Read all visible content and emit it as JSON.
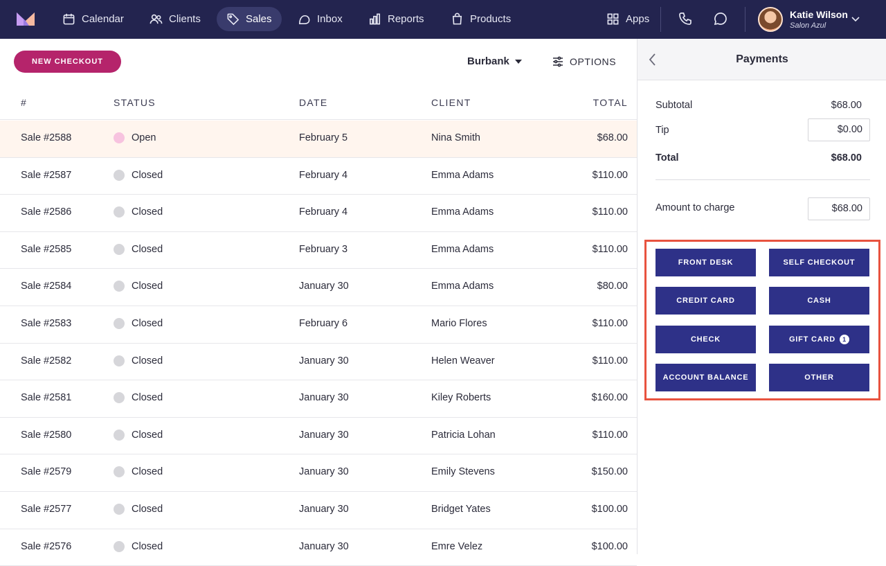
{
  "nav": {
    "items": [
      {
        "label": "Calendar",
        "icon": "calendar-icon"
      },
      {
        "label": "Clients",
        "icon": "users-icon"
      },
      {
        "label": "Sales",
        "icon": "tag-icon",
        "active": true
      },
      {
        "label": "Inbox",
        "icon": "inbox-icon"
      },
      {
        "label": "Reports",
        "icon": "bar-chart-icon"
      },
      {
        "label": "Products",
        "icon": "shopping-bag-icon"
      }
    ],
    "apps_label": "Apps",
    "user": {
      "name": "Katie Wilson",
      "salon": "Salon Azul"
    }
  },
  "toolbar": {
    "new_checkout": "NEW CHECKOUT",
    "location": "Burbank",
    "options": "OPTIONS"
  },
  "table": {
    "headers": [
      "#",
      "STATUS",
      "DATE",
      "CLIENT",
      "TOTAL"
    ],
    "rows": [
      {
        "id": "Sale #2588",
        "status": "Open",
        "date": "February 5",
        "client": "Nina Smith",
        "total": "$68.00"
      },
      {
        "id": "Sale #2587",
        "status": "Closed",
        "date": "February 4",
        "client": "Emma Adams",
        "total": "$110.00"
      },
      {
        "id": "Sale #2586",
        "status": "Closed",
        "date": "February 4",
        "client": "Emma Adams",
        "total": "$110.00"
      },
      {
        "id": "Sale #2585",
        "status": "Closed",
        "date": "February 3",
        "client": "Emma Adams",
        "total": "$110.00"
      },
      {
        "id": "Sale #2584",
        "status": "Closed",
        "date": "January 30",
        "client": "Emma Adams",
        "total": "$80.00"
      },
      {
        "id": "Sale #2583",
        "status": "Closed",
        "date": "February 6",
        "client": "Mario Flores",
        "total": "$110.00"
      },
      {
        "id": "Sale #2582",
        "status": "Closed",
        "date": "January 30",
        "client": "Helen Weaver",
        "total": "$110.00"
      },
      {
        "id": "Sale #2581",
        "status": "Closed",
        "date": "January 30",
        "client": "Kiley Roberts",
        "total": "$160.00"
      },
      {
        "id": "Sale #2580",
        "status": "Closed",
        "date": "January 30",
        "client": "Patricia Lohan",
        "total": "$110.00"
      },
      {
        "id": "Sale #2579",
        "status": "Closed",
        "date": "January 30",
        "client": "Emily Stevens",
        "total": "$150.00"
      },
      {
        "id": "Sale #2577",
        "status": "Closed",
        "date": "January 30",
        "client": "Bridget Yates",
        "total": "$100.00"
      },
      {
        "id": "Sale #2576",
        "status": "Closed",
        "date": "January 30",
        "client": "Emre Velez",
        "total": "$100.00"
      }
    ]
  },
  "payments": {
    "title": "Payments",
    "subtotal_label": "Subtotal",
    "subtotal": "$68.00",
    "tip_label": "Tip",
    "tip": "$0.00",
    "total_label": "Total",
    "total": "$68.00",
    "charge_label": "Amount to charge",
    "charge": "$68.00",
    "methods": [
      {
        "label": "FRONT DESK"
      },
      {
        "label": "SELF CHECKOUT"
      },
      {
        "label": "CREDIT CARD"
      },
      {
        "label": "CASH"
      },
      {
        "label": "CHECK"
      },
      {
        "label": "GIFT CARD",
        "badge": "1"
      },
      {
        "label": "ACCOUNT BALANCE"
      },
      {
        "label": "OTHER"
      }
    ]
  },
  "colors": {
    "nav_bg": "#23244f",
    "brand_pink": "#b5246b",
    "pay_button": "#2e3188",
    "highlight": "#e8533f",
    "open_row": "#fff5ee"
  }
}
